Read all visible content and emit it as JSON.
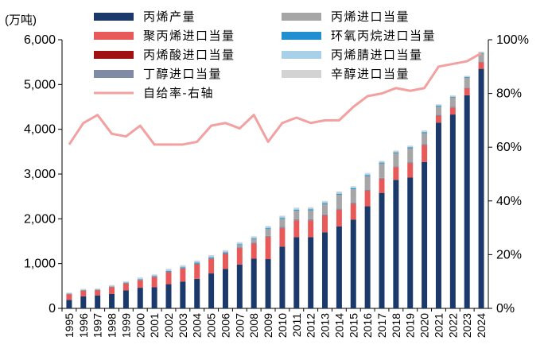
{
  "chart_data": {
    "type": "bar",
    "stacked": true,
    "unit_label": "(万吨)",
    "categories": [
      "1995",
      "1996",
      "1997",
      "1998",
      "1999",
      "2000",
      "2001",
      "2002",
      "2003",
      "2004",
      "2005",
      "2006",
      "2007",
      "2008",
      "2009",
      "2010",
      "2011",
      "2012",
      "2013",
      "2014",
      "2015",
      "2016",
      "2017",
      "2018",
      "2019",
      "2020",
      "2021",
      "2022",
      "2023",
      "2024"
    ],
    "left_axis": {
      "min": 0,
      "max": 6000,
      "ticks": [
        "0",
        "1,000",
        "2,000",
        "3,000",
        "4,000",
        "5,000",
        "6,000"
      ]
    },
    "right_axis": {
      "min": 0,
      "max": 100,
      "ticks": [
        "0%",
        "20%",
        "40%",
        "60%",
        "80%",
        "100%"
      ]
    },
    "series": [
      {
        "name": "丙烯产量",
        "color": "#1b3a6b",
        "axis": "left",
        "values": [
          190,
          270,
          290,
          320,
          400,
          460,
          470,
          540,
          600,
          660,
          780,
          880,
          980,
          1110,
          1100,
          1380,
          1590,
          1590,
          1700,
          1830,
          1980,
          2280,
          2580,
          2870,
          2920,
          3270,
          4150,
          4330,
          4760,
          5350
        ]
      },
      {
        "name": "聚丙烯进口当量",
        "color": "#e85a5a",
        "axis": "left",
        "values": [
          120,
          120,
          110,
          150,
          150,
          160,
          220,
          260,
          280,
          320,
          320,
          330,
          360,
          330,
          490,
          410,
          370,
          370,
          370,
          370,
          350,
          340,
          310,
          280,
          320,
          370,
          150,
          150,
          150,
          140
        ]
      },
      {
        "name": "丙烯酸进口当量",
        "color": "#a01212",
        "axis": "left",
        "values": [
          5,
          5,
          5,
          5,
          5,
          5,
          5,
          5,
          5,
          5,
          5,
          5,
          5,
          5,
          5,
          5,
          5,
          5,
          5,
          5,
          5,
          5,
          5,
          5,
          5,
          5,
          5,
          5,
          5,
          5
        ]
      },
      {
        "name": "丁醇进口当量",
        "color": "#7f8aa5",
        "axis": "left",
        "values": [
          10,
          10,
          10,
          10,
          15,
          15,
          15,
          20,
          20,
          20,
          20,
          20,
          20,
          20,
          25,
          25,
          25,
          25,
          25,
          25,
          25,
          20,
          20,
          20,
          20,
          20,
          20,
          15,
          15,
          15
        ]
      },
      {
        "name": "丙烯进口当量",
        "color": "#a6a6a6",
        "axis": "left",
        "values": [
          0,
          0,
          0,
          0,
          0,
          0,
          0,
          0,
          0,
          0,
          0,
          0,
          50,
          80,
          150,
          180,
          190,
          200,
          230,
          310,
          300,
          310,
          320,
          290,
          310,
          250,
          180,
          210,
          220,
          180
        ]
      },
      {
        "name": "环氧丙烷进口当量",
        "color": "#1f8fd1",
        "axis": "left",
        "values": [
          5,
          5,
          5,
          5,
          5,
          10,
          10,
          10,
          10,
          15,
          15,
          15,
          15,
          15,
          20,
          20,
          20,
          20,
          20,
          20,
          20,
          20,
          20,
          20,
          20,
          20,
          20,
          15,
          15,
          15
        ]
      },
      {
        "name": "丙烯腈进口当量",
        "color": "#a8d0e6",
        "axis": "left",
        "values": [
          10,
          10,
          10,
          15,
          15,
          20,
          20,
          30,
          30,
          30,
          30,
          30,
          30,
          30,
          30,
          30,
          30,
          30,
          30,
          30,
          30,
          30,
          20,
          20,
          20,
          20,
          15,
          15,
          10,
          10
        ]
      },
      {
        "name": "辛醇进口当量",
        "color": "#d3d3d3",
        "axis": "left",
        "values": [
          15,
          15,
          15,
          15,
          15,
          20,
          20,
          20,
          20,
          20,
          20,
          20,
          20,
          20,
          20,
          20,
          20,
          20,
          20,
          20,
          20,
          20,
          20,
          20,
          20,
          20,
          20,
          20,
          20,
          20
        ]
      }
    ],
    "line_series": {
      "name": "自给率-右轴",
      "color": "#f2a0a0",
      "axis": "right",
      "values": [
        61,
        69,
        72,
        65,
        64,
        68,
        61,
        61,
        61,
        62,
        68,
        69,
        67,
        72,
        62,
        69,
        71,
        69,
        70,
        70,
        75,
        79,
        80,
        82,
        81,
        82,
        90,
        91,
        92,
        95
      ]
    },
    "legend": [
      {
        "label": "丙烯产量",
        "swatch": "#1b3a6b",
        "kind": "box"
      },
      {
        "label": "丙烯进口当量",
        "swatch": "#a6a6a6",
        "kind": "box"
      },
      {
        "label": "聚丙烯进口当量",
        "swatch": "#e85a5a",
        "kind": "box"
      },
      {
        "label": "环氧丙烷进口当量",
        "swatch": "#1f8fd1",
        "kind": "box"
      },
      {
        "label": "丙烯酸进口当量",
        "swatch": "#a01212",
        "kind": "box"
      },
      {
        "label": "丙烯腈进口当量",
        "swatch": "#a8d0e6",
        "kind": "box"
      },
      {
        "label": "丁醇进口当量",
        "swatch": "#7f8aa5",
        "kind": "box"
      },
      {
        "label": "辛醇进口当量",
        "swatch": "#d3d3d3",
        "kind": "box"
      },
      {
        "label": "自给率-右轴",
        "swatch": "#f2a0a0",
        "kind": "line"
      }
    ],
    "grid": false,
    "legend_position": "top-left"
  }
}
